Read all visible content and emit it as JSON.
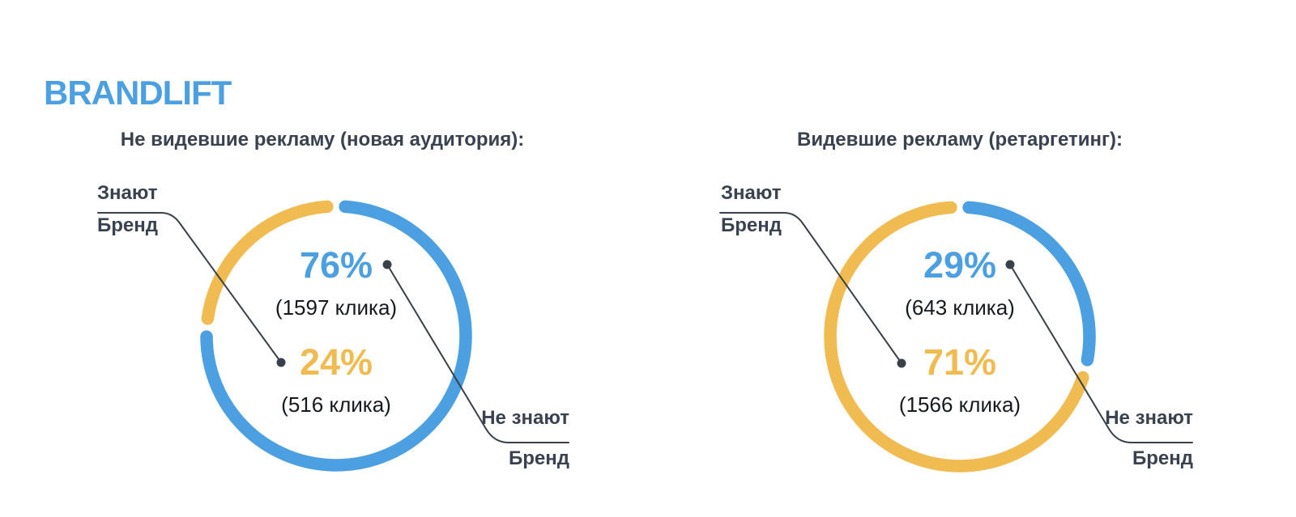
{
  "header": {
    "title": "BRANDLIFT"
  },
  "colors": {
    "blue": "#4C9FE0",
    "yellow": "#F0BB51",
    "heading": "#4C9FE0",
    "label_text": "#39424E",
    "count_text": "#16191E",
    "leader_line": "#3A4049"
  },
  "chart_data": [
    {
      "type": "donut",
      "title": "Не видевшие рекламу (новая аудитория):",
      "legend_position": "callout-lines",
      "series": [
        {
          "label": "Не знают Бренд",
          "value": 76,
          "percent_label": "76%",
          "clicks": 1597,
          "clicks_label": "(1597 клика)",
          "color": "#4C9FE0"
        },
        {
          "label": "Знают Бренд",
          "value": 24,
          "percent_label": "24%",
          "clicks": 516,
          "clicks_label": "(516 клика)",
          "color": "#F0BB51"
        }
      ],
      "callouts": {
        "know": {
          "line1": "Знают",
          "line2": "Бренд"
        },
        "dont_know": {
          "line1": "Не знают",
          "line2": "Бренд"
        }
      }
    },
    {
      "type": "donut",
      "title": "Видевшие рекламу (ретаргетинг):",
      "legend_position": "callout-lines",
      "series": [
        {
          "label": "Не знают Бренд",
          "value": 29,
          "percent_label": "29%",
          "clicks": 643,
          "clicks_label": "(643 клика)",
          "color": "#4C9FE0"
        },
        {
          "label": "Знают Бренд",
          "value": 71,
          "percent_label": "71%",
          "clicks": 1566,
          "clicks_label": "(1566 клика)",
          "color": "#F0BB51"
        }
      ],
      "callouts": {
        "know": {
          "line1": "Знают",
          "line2": "Бренд"
        },
        "dont_know": {
          "line1": "Не знают",
          "line2": "Бренд"
        }
      }
    }
  ]
}
